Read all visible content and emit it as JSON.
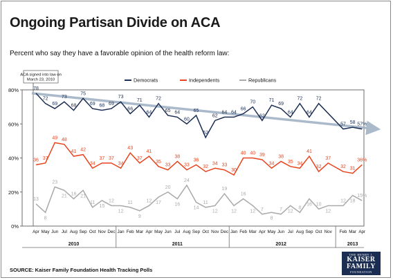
{
  "title": "Ongoing Partisan Divide on ACA",
  "subtitle": "Percent who say they have a favorable opinion of the health reform law:",
  "source": "SOURCE: Kaiser Family Foundation Health Tracking Polls",
  "logo": {
    "line1": "THE HENRY J.",
    "line2a": "KAISER",
    "line2b": "FAMILY",
    "line3": "FOUNDATION"
  },
  "annotation": "ACA signed into law on March 23, 2010",
  "colors": {
    "democrats": "#1b2d52",
    "independents": "#e8431c",
    "republicans": "#a9a9a9",
    "trend": "#a3b3c6"
  },
  "chart_data": {
    "type": "line",
    "ylim": [
      0,
      80
    ],
    "yticks": [
      "0%",
      "20%",
      "40%",
      "60%",
      "80%"
    ],
    "month_labels": [
      "Apr",
      "May",
      "Jun",
      "Jul",
      "Aug",
      "Sep",
      "Oct",
      "Nov",
      "Dec",
      "Jan",
      "Feb",
      "Mar",
      "Apr",
      "May",
      "Jun",
      "Jul",
      "Aug",
      "Sep",
      "Oct",
      "Nov",
      "Dec",
      "Jan",
      "Feb",
      "Mar",
      "Apr",
      "May",
      "Jun",
      "Jul",
      "Aug",
      "Sep",
      "Oct",
      "Nov",
      "Feb",
      "Mar",
      "Apr"
    ],
    "month_index": [
      0,
      1,
      2,
      3,
      4,
      5,
      6,
      7,
      8,
      9,
      10,
      11,
      12,
      13,
      14,
      15,
      16,
      17,
      18,
      19,
      20,
      21,
      22,
      23,
      24,
      25,
      26,
      27,
      28,
      29,
      30,
      31,
      32.6,
      33.6,
      34.6
    ],
    "years": [
      {
        "label": "2010",
        "center": 4.0
      },
      {
        "label": "2011",
        "center": 15.0
      },
      {
        "label": "2012",
        "center": 26.0
      },
      {
        "label": "2013",
        "center": 33.6
      }
    ],
    "year_separators": [
      8.5,
      20.5,
      31.8
    ],
    "series": [
      {
        "name": "Democrats",
        "color": "#1b2d52",
        "x": [
          0,
          1,
          2,
          3,
          4,
          5,
          6,
          7,
          8,
          9,
          10,
          11,
          12,
          13,
          14,
          15,
          16,
          17,
          18,
          19,
          20,
          21,
          22,
          23,
          24,
          25,
          26,
          27,
          28,
          29,
          30,
          31,
          32.6,
          33.6,
          34.6
        ],
        "values": [
          78,
          72,
          69,
          73,
          68,
          75,
          69,
          68,
          69,
          73,
          66,
          71,
          64,
          72,
          65,
          64,
          60,
          65,
          52,
          62,
          64,
          64,
          66,
          70,
          62,
          71,
          69,
          64,
          72,
          64,
          72,
          null,
          57,
          58,
          57
        ],
        "labels": [
          "78",
          "72",
          "69",
          "73",
          "68",
          "75",
          "69",
          "68",
          "69",
          "73",
          "66",
          "71",
          "64",
          "72",
          "65",
          "64",
          "60",
          "65",
          "52",
          "62",
          "64",
          "64",
          "66",
          "70",
          "62",
          "71",
          "69",
          "64",
          "72",
          "64",
          "72",
          "",
          "57",
          "58",
          "57%"
        ]
      },
      {
        "name": "Independents",
        "color": "#e8431c",
        "x": [
          0,
          1,
          2,
          3,
          4,
          5,
          6,
          7,
          8,
          9,
          10,
          11,
          12,
          13,
          14,
          15,
          16,
          17,
          18,
          19,
          20,
          21,
          22,
          23,
          24,
          25,
          26,
          27,
          28,
          29,
          30,
          31,
          32.6,
          33.6,
          34.6
        ],
        "values": [
          36,
          37,
          49,
          48,
          41,
          42,
          34,
          37,
          37,
          34,
          43,
          37,
          41,
          35,
          33,
          38,
          33,
          36,
          32,
          34,
          33,
          30,
          40,
          40,
          39,
          34,
          38,
          35,
          34,
          41,
          32,
          37,
          32,
          31,
          36
        ],
        "labels": [
          "36",
          "37",
          "49",
          "48",
          "41",
          "42",
          "34",
          "37",
          "37",
          "34",
          "43",
          "37",
          "41",
          "35",
          "33",
          "38",
          "33",
          "36",
          "32",
          "34",
          "33",
          "30",
          "40",
          "40",
          "39",
          "34",
          "38",
          "35",
          "34",
          "41",
          "32",
          "37",
          "32",
          "31",
          "36%"
        ]
      },
      {
        "name": "Republicans",
        "color": "#a9a9a9",
        "x": [
          0,
          1,
          2,
          3,
          4,
          5,
          6,
          7,
          8,
          9,
          10,
          11,
          12,
          13,
          14,
          15,
          16,
          17,
          18,
          19,
          20,
          21,
          22,
          23,
          24,
          25,
          26,
          27,
          28,
          29,
          30,
          31,
          32.6,
          33.6,
          34.6
        ],
        "values": [
          13,
          8,
          23,
          21,
          16,
          21,
          11,
          15,
          12,
          12,
          11,
          9,
          12,
          17,
          20,
          16,
          24,
          14,
          11,
          12,
          19,
          12,
          16,
          12,
          7,
          8,
          7,
          12,
          8,
          16,
          10,
          12,
          12,
          18,
          15
        ],
        "labels": [
          "13",
          "8",
          "23",
          "21",
          "16",
          "21",
          "11",
          "15",
          "12",
          "12",
          "11",
          "9",
          "12",
          "17",
          "20",
          "16",
          "24",
          "14",
          "11",
          "12",
          "19",
          "12",
          "16",
          "12",
          "7",
          "8",
          "7",
          "12",
          "8",
          "16",
          "10",
          "12",
          "12",
          "18",
          "15%"
        ]
      }
    ],
    "trend": {
      "x": [
        0,
        36.2
      ],
      "values": [
        78,
        57
      ]
    }
  }
}
